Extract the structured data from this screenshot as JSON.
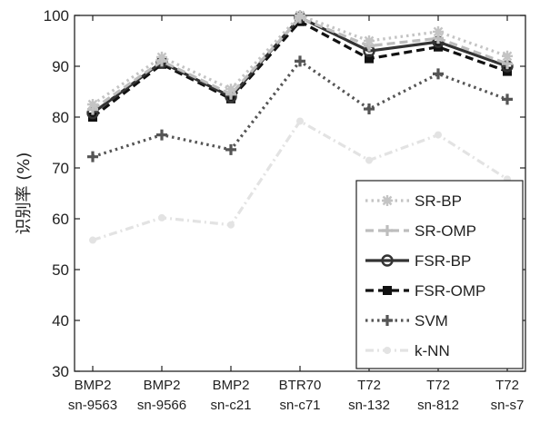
{
  "chart_data": {
    "type": "line",
    "title": "",
    "xlabel": "",
    "ylabel": "识别率 (%)",
    "ylim": [
      30,
      100
    ],
    "yticks": [
      30,
      40,
      50,
      60,
      70,
      80,
      90,
      100
    ],
    "grid": false,
    "legend_position": "bottom-right",
    "categories": [
      [
        "BMP2",
        "sn-9563"
      ],
      [
        "BMP2",
        "sn-9566"
      ],
      [
        "BMP2",
        "sn-c21"
      ],
      [
        "BTR70",
        "sn-c71"
      ],
      [
        "T72",
        "sn-132"
      ],
      [
        "T72",
        "sn-812"
      ],
      [
        "T72",
        "sn-s7"
      ]
    ],
    "series": [
      {
        "name": "SR-BP",
        "values": [
          82.5,
          91.8,
          85.5,
          100.0,
          95.0,
          96.8,
          92.0
        ],
        "color": "#c4c4c4",
        "dash": "dotted",
        "marker": "star"
      },
      {
        "name": "SR-OMP",
        "values": [
          81.5,
          91.0,
          84.5,
          99.5,
          94.0,
          95.5,
          90.5
        ],
        "color": "#bdbdbd",
        "dash": "dashed",
        "marker": "plus"
      },
      {
        "name": "FSR-BP",
        "values": [
          80.8,
          90.8,
          84.0,
          99.6,
          93.0,
          94.8,
          90.0
        ],
        "color": "#333333",
        "dash": "solid",
        "marker": "circle"
      },
      {
        "name": "FSR-OMP",
        "values": [
          80.0,
          90.4,
          83.6,
          98.8,
          91.5,
          93.8,
          89.0
        ],
        "color": "#111111",
        "dash": "dashed",
        "marker": "square"
      },
      {
        "name": "SVM",
        "values": [
          72.2,
          76.5,
          73.6,
          91.0,
          81.6,
          88.5,
          83.5
        ],
        "color": "#555555",
        "dash": "dotted",
        "marker": "plus"
      },
      {
        "name": "k-NN",
        "values": [
          55.8,
          60.2,
          58.8,
          79.2,
          71.5,
          76.5,
          67.8
        ],
        "color": "#e3e3e3",
        "dash": "dashdot",
        "marker": "dot"
      }
    ]
  }
}
